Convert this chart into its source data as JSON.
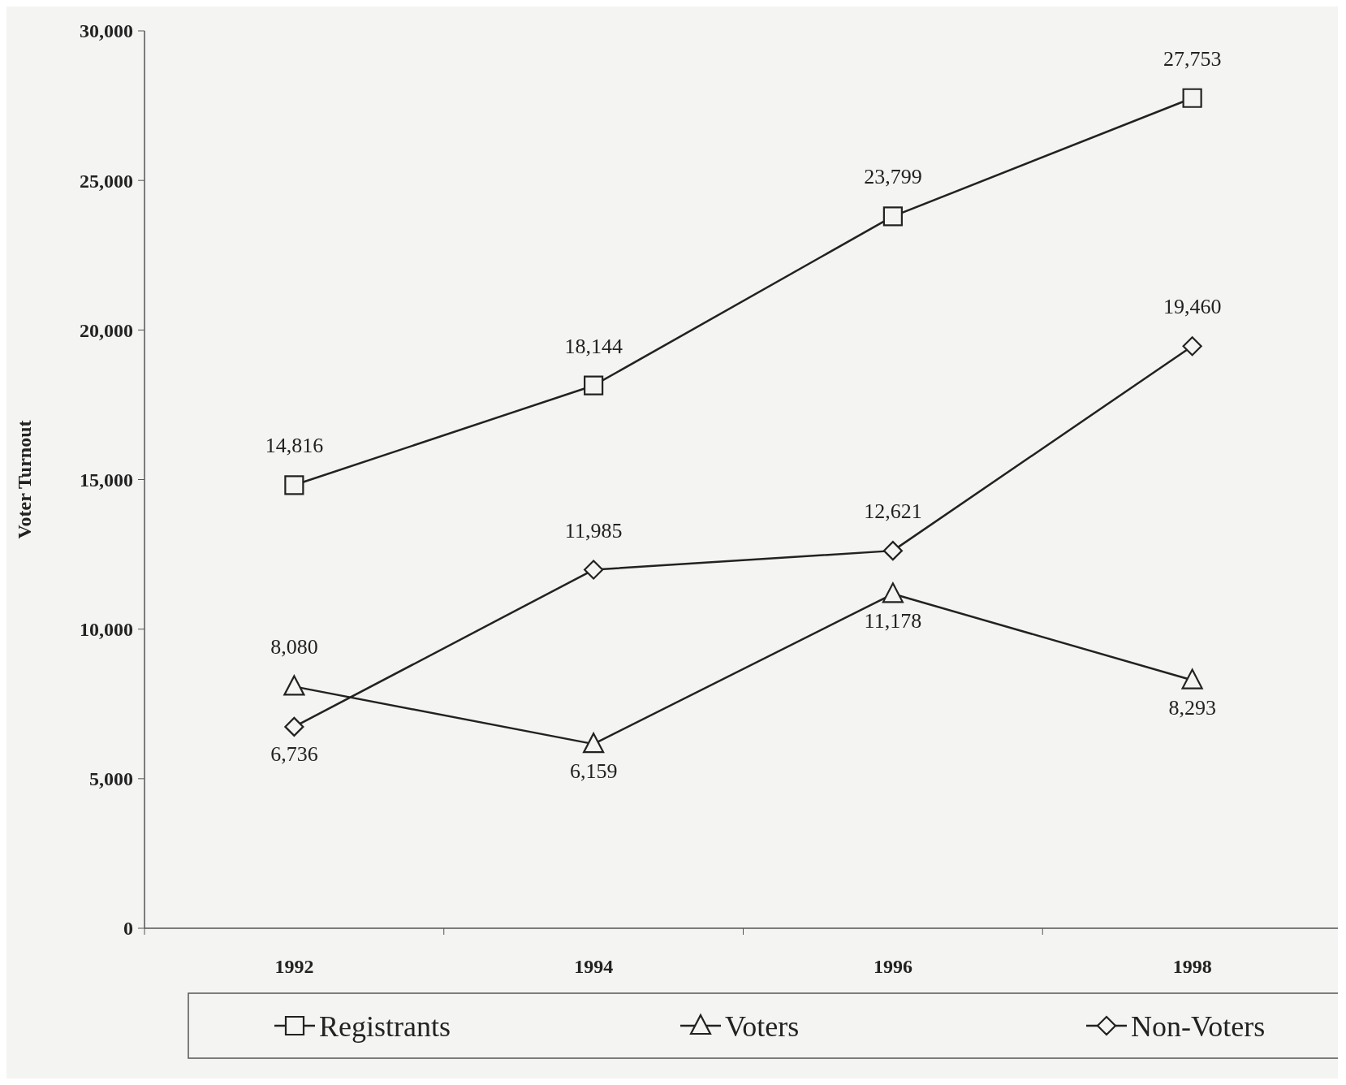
{
  "chart_data": {
    "type": "line",
    "ylabel": "Voter Turnout",
    "categories": [
      "1992",
      "1994",
      "1996",
      "1998"
    ],
    "series": [
      {
        "name": "Registrants",
        "color": "#222222",
        "marker": "square",
        "values": [
          14816,
          18144,
          23799,
          27753
        ],
        "value_labels": [
          "14,816",
          "18,144",
          "23,799",
          "27,753"
        ]
      },
      {
        "name": "Voters",
        "color": "#222222",
        "marker": "triangle",
        "values": [
          8080,
          6159,
          11178,
          8293
        ],
        "value_labels": [
          "8,080",
          "6,159",
          "11,178",
          "8,293"
        ]
      },
      {
        "name": "Non-Voters",
        "color": "#222222",
        "marker": "diamond",
        "values": [
          6736,
          11985,
          12621,
          19460
        ],
        "value_labels": [
          "6,736",
          "11,985",
          "12,621",
          "19,460"
        ]
      }
    ],
    "ylim": [
      0,
      30000
    ],
    "yticks": [
      {
        "value": 0,
        "label": "0"
      },
      {
        "value": 5000,
        "label": "5,000"
      },
      {
        "value": 10000,
        "label": "10,000"
      },
      {
        "value": 15000,
        "label": "15,000"
      },
      {
        "value": 20000,
        "label": "20,000"
      },
      {
        "value": 25000,
        "label": "25,000"
      },
      {
        "value": 30000,
        "label": "30,000"
      }
    ],
    "legend": "bottom",
    "grid": false,
    "line_style": "solid"
  }
}
